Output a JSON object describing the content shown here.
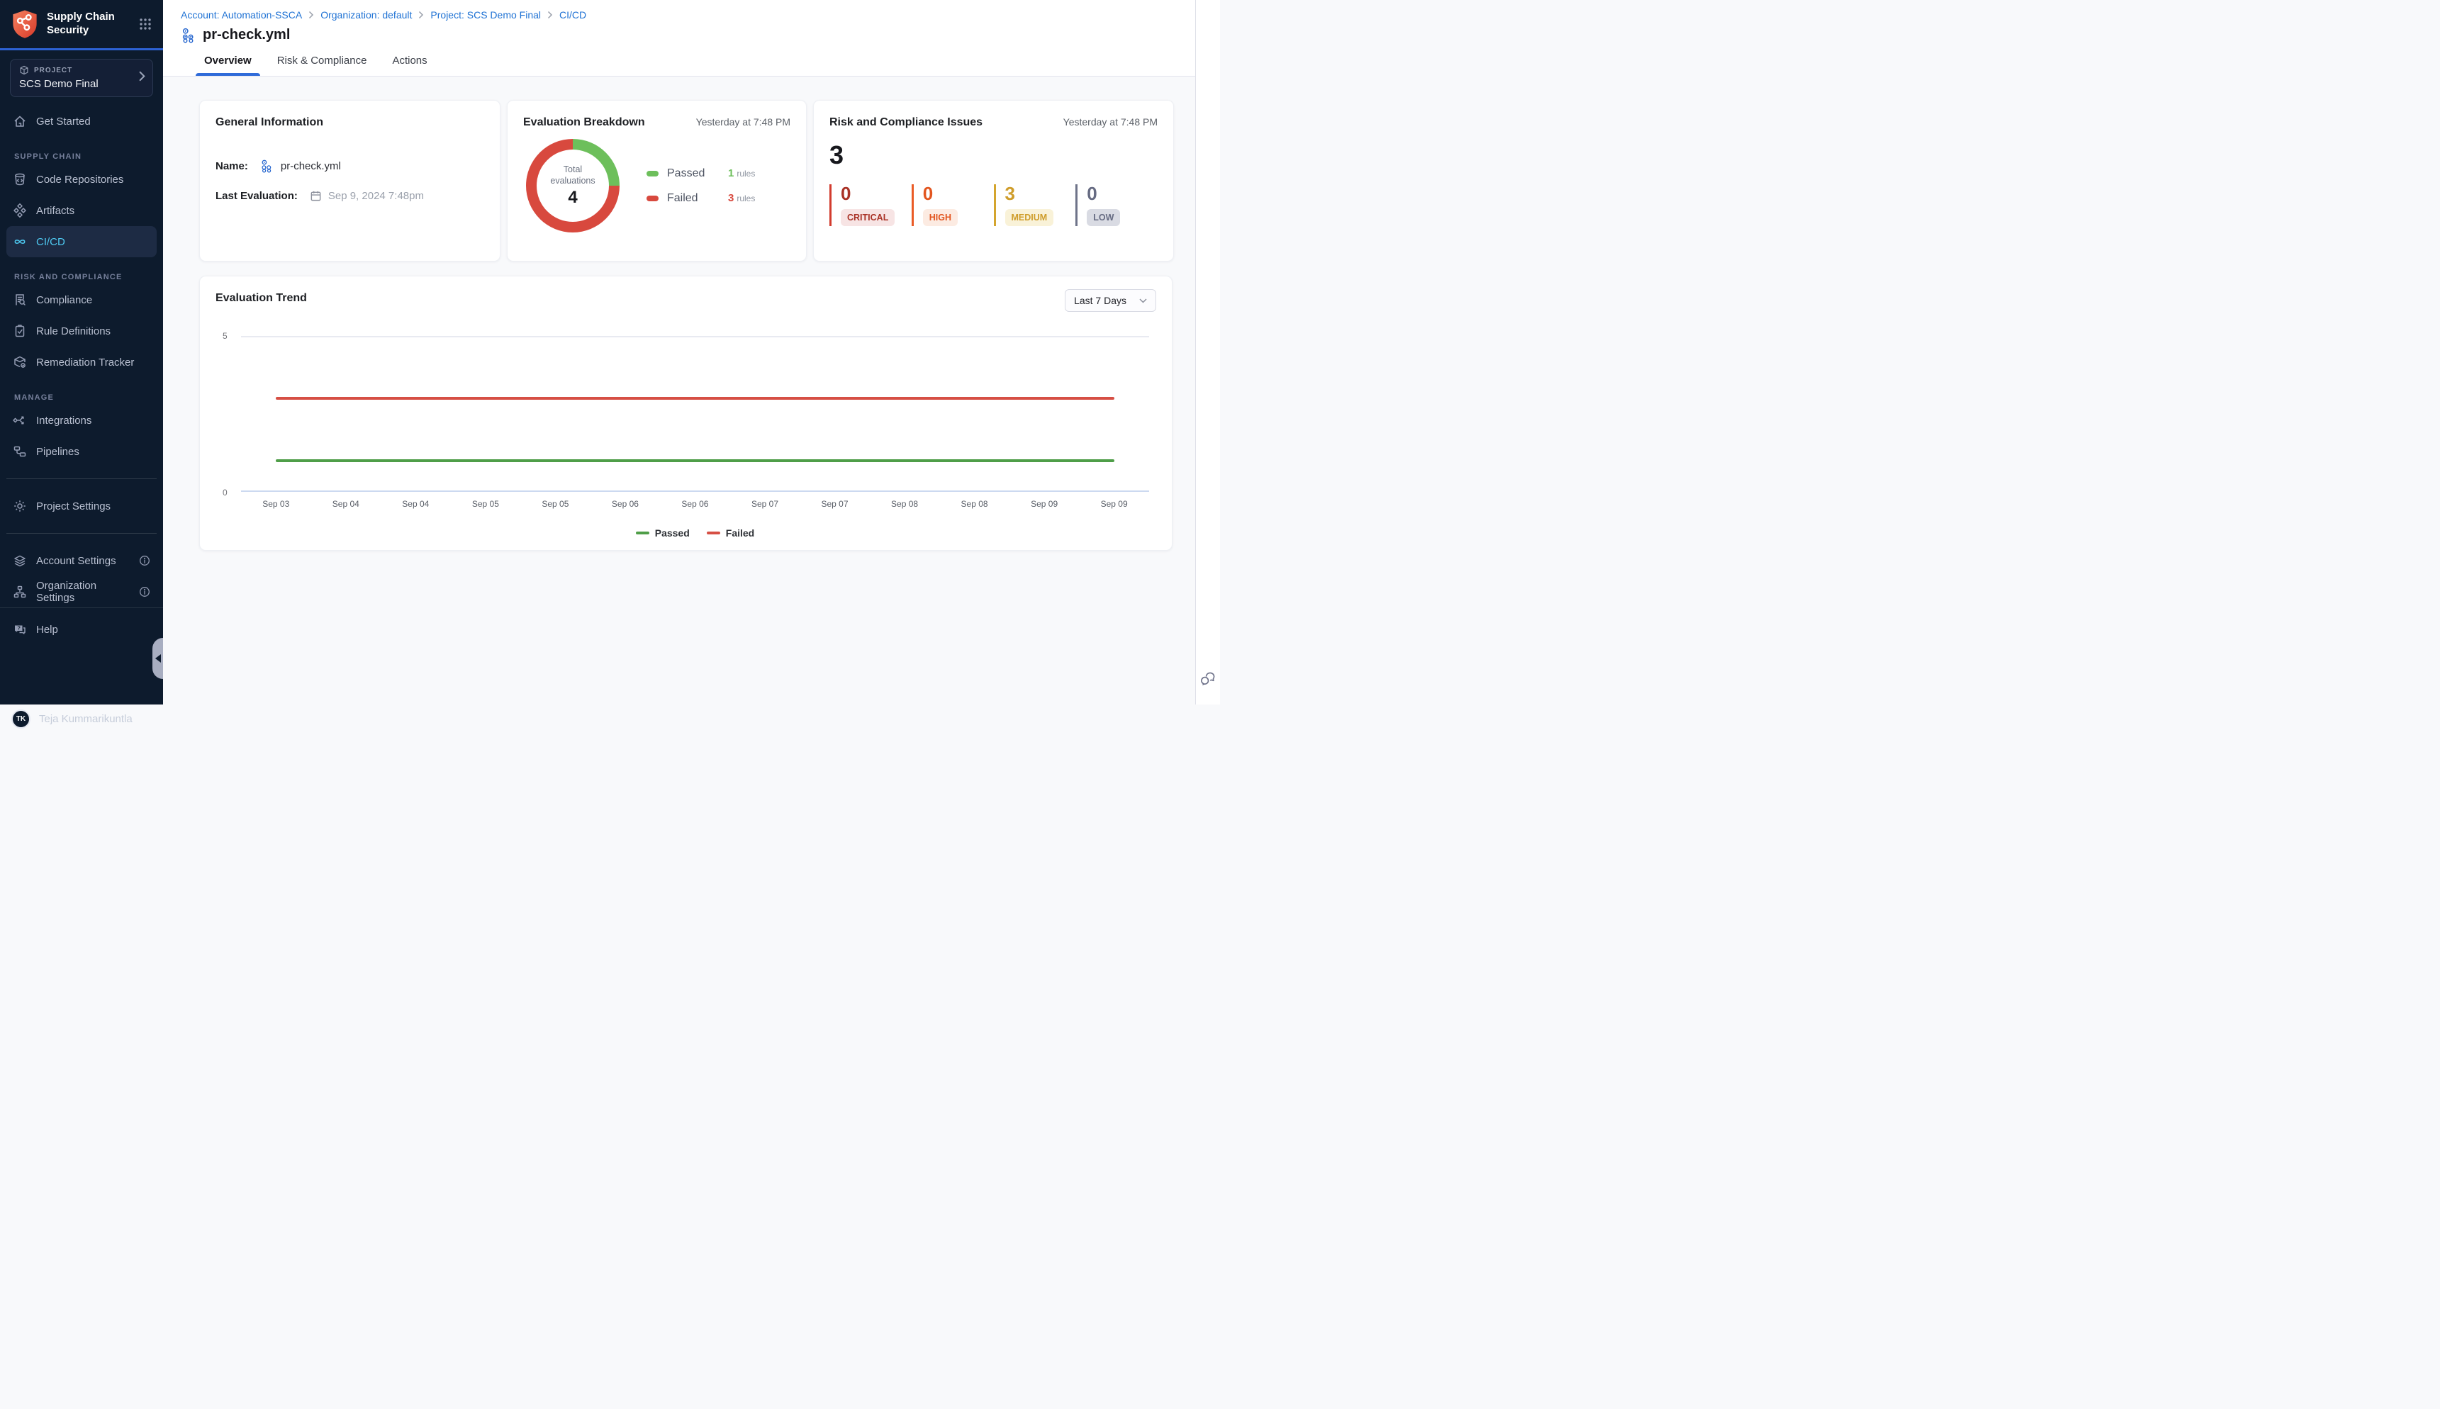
{
  "sidebar": {
    "app_title": "Supply Chain Security",
    "project": {
      "label": "PROJECT",
      "name": "SCS Demo Final"
    },
    "get_started": "Get Started",
    "sections": [
      {
        "heading": "SUPPLY CHAIN",
        "items": [
          {
            "label": "Code Repositories",
            "icon": "code-repository-icon",
            "active": false
          },
          {
            "label": "Artifacts",
            "icon": "artifacts-icon",
            "active": false
          },
          {
            "label": "CI/CD",
            "icon": "infinity-icon",
            "active": true
          }
        ]
      },
      {
        "heading": "RISK AND COMPLIANCE",
        "items": [
          {
            "label": "Compliance",
            "icon": "compliance-icon",
            "active": false
          },
          {
            "label": "Rule Definitions",
            "icon": "rule-definitions-icon",
            "active": false
          },
          {
            "label": "Remediation Tracker",
            "icon": "remediation-tracker-icon",
            "active": false
          }
        ]
      },
      {
        "heading": "MANAGE",
        "items": [
          {
            "label": "Integrations",
            "icon": "integrations-icon",
            "active": false
          },
          {
            "label": "Pipelines",
            "icon": "pipelines-icon",
            "active": false
          }
        ]
      }
    ],
    "project_settings": "Project Settings",
    "account_settings": "Account Settings",
    "organization_settings": "Organization Settings",
    "help": "Help",
    "user": {
      "initials": "TK",
      "name": "Teja Kummarikuntla"
    }
  },
  "header": {
    "breadcrumb": [
      {
        "label": "Account: Automation-SSCA"
      },
      {
        "label": "Organization: default"
      },
      {
        "label": "Project: SCS Demo Final"
      },
      {
        "label": "CI/CD"
      }
    ],
    "title": "pr-check.yml",
    "tabs": [
      {
        "label": "Overview",
        "active": true
      },
      {
        "label": "Risk & Compliance",
        "active": false
      },
      {
        "label": "Actions",
        "active": false
      }
    ]
  },
  "general_info": {
    "title": "General Information",
    "name_label": "Name:",
    "name_value": "pr-check.yml",
    "last_evaluation_label": "Last Evaluation:",
    "last_evaluation_value": "Sep 9, 2024 7:48pm"
  },
  "evaluation_breakdown": {
    "title": "Evaluation Breakdown",
    "timestamp": "Yesterday at 7:48 PM",
    "center_label": "Total evaluations",
    "total": 4,
    "legend": [
      {
        "label": "Passed",
        "count": 1,
        "unit": "rules",
        "color": "#6dbf5b"
      },
      {
        "label": "Failed",
        "count": 3,
        "unit": "rules",
        "color": "#d8493e"
      }
    ]
  },
  "risk_issues": {
    "title": "Risk and Compliance Issues",
    "timestamp": "Yesterday at 7:48 PM",
    "total": 3,
    "severities": [
      {
        "label": "CRITICAL",
        "count": 0,
        "color": "#a93226",
        "bar": "#d23b2e",
        "badge_bg": "#f7e4e4"
      },
      {
        "label": "HIGH",
        "count": 0,
        "color": "#e2551f",
        "bar": "#ea5b26",
        "badge_bg": "#fcebe2"
      },
      {
        "label": "MEDIUM",
        "count": 3,
        "color": "#cf9d2b",
        "bar": "#d4a52e",
        "badge_bg": "#f9f2d8"
      },
      {
        "label": "LOW",
        "count": 0,
        "color": "#666b82",
        "bar": "#6e7389",
        "badge_bg": "#d9dbe3"
      }
    ]
  },
  "trend": {
    "title": "Evaluation Trend",
    "range_selector": "Last 7 Days"
  },
  "chart_data": [
    {
      "type": "pie",
      "donut": true,
      "title": "Evaluation Breakdown",
      "labels": [
        "Passed",
        "Failed"
      ],
      "values": [
        1,
        3
      ],
      "colors": [
        "#6dbf5b",
        "#d8493e"
      ],
      "center_label": "Total evaluations",
      "center_value": 4
    },
    {
      "type": "line",
      "title": "Evaluation Trend",
      "x": [
        "Sep 03",
        "Sep 04",
        "Sep 04",
        "Sep 05",
        "Sep 05",
        "Sep 06",
        "Sep 06",
        "Sep 07",
        "Sep 07",
        "Sep 08",
        "Sep 08",
        "Sep 09",
        "Sep 09"
      ],
      "series": [
        {
          "name": "Passed",
          "values": [
            1,
            1,
            1,
            1,
            1,
            1,
            1,
            1,
            1,
            1,
            1,
            1,
            1
          ],
          "color": "#4f9e48"
        },
        {
          "name": "Failed",
          "values": [
            3,
            3,
            3,
            3,
            3,
            3,
            3,
            3,
            3,
            3,
            3,
            3,
            3
          ],
          "color": "#d64f44"
        }
      ],
      "ylim": [
        0,
        5
      ],
      "yticks": [
        0,
        5
      ],
      "legend_position": "bottom",
      "grid": "top-gridline-and-baseline"
    }
  ]
}
